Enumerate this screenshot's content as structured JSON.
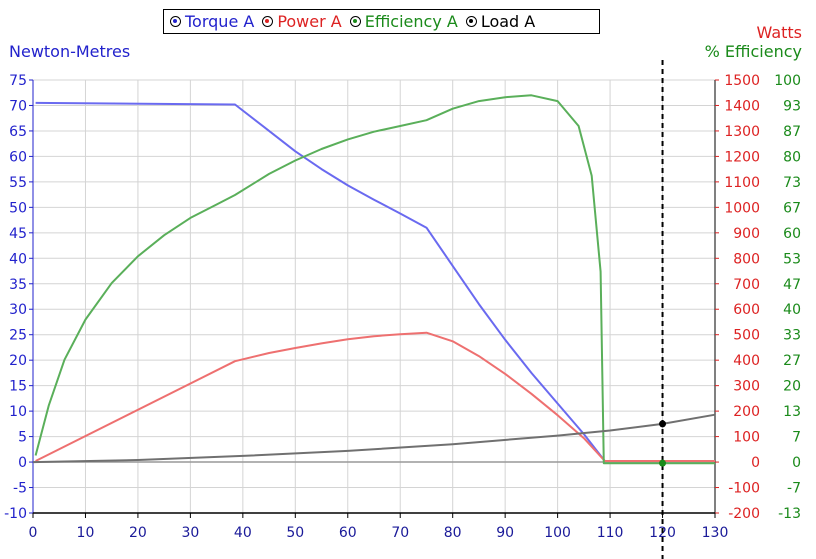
{
  "legend": [
    {
      "label": "Torque A",
      "color": "#2222cc"
    },
    {
      "label": "Power A",
      "color": "#dd2222"
    },
    {
      "label": "Efficiency A",
      "color": "#1a8a1a"
    },
    {
      "label": "Load A",
      "color": "#000000"
    }
  ],
  "axes": {
    "left_title": "Newton-Metres",
    "right_title_1": "Watts",
    "right_title_2": "% Efficiency"
  },
  "chart_data": {
    "type": "line",
    "xlim": [
      0,
      130
    ],
    "x_ticks": [
      0,
      10,
      20,
      30,
      40,
      50,
      60,
      70,
      80,
      90,
      100,
      110,
      120,
      130
    ],
    "left_axis": {
      "title": "Newton-Metres",
      "ylim": [
        -10,
        75
      ],
      "color": "#2222cc",
      "ticks": [
        "-10",
        "-5",
        "0",
        "5",
        "10",
        "15",
        "20",
        "25",
        "30",
        "35",
        "40",
        "45",
        "50",
        "55",
        "60",
        "65",
        "70",
        "75"
      ]
    },
    "watts_axis": {
      "title": "Watts",
      "ylim": [
        -200,
        1500
      ],
      "color": "#dd2222",
      "ticks": [
        "-200",
        "-100",
        "0",
        "100",
        "200",
        "300",
        "400",
        "500",
        "600",
        "700",
        "800",
        "900",
        "1000",
        "1100",
        "1200",
        "1300",
        "1400",
        "1500"
      ]
    },
    "efficiency_axis": {
      "title": "% Efficiency",
      "ylim": [
        -13,
        100
      ],
      "color": "#1a8a1a",
      "ticks": [
        "-13",
        "-7",
        "0",
        "7",
        "13",
        "20",
        "27",
        "33",
        "40",
        "47",
        "53",
        "60",
        "67",
        "73",
        "80",
        "87",
        "93",
        "100"
      ]
    },
    "marker_x": 120,
    "series": [
      {
        "name": "Torque A",
        "color": "#6a6af0",
        "axis": "left",
        "points": [
          [
            0.5,
            70.5
          ],
          [
            38.5,
            70.2
          ],
          [
            45,
            65
          ],
          [
            50,
            61
          ],
          [
            55,
            57.5
          ],
          [
            60,
            54.3
          ],
          [
            65,
            51.5
          ],
          [
            70,
            48.8
          ],
          [
            75,
            46
          ],
          [
            80,
            38.5
          ],
          [
            85,
            31
          ],
          [
            90,
            24
          ],
          [
            95,
            17.5
          ],
          [
            100,
            11.5
          ],
          [
            105,
            5.5
          ],
          [
            109,
            0.2
          ],
          [
            130,
            0.2
          ]
        ]
      },
      {
        "name": "Power A",
        "color": "#ee7070",
        "axis": "watts",
        "points": [
          [
            0.5,
            4
          ],
          [
            38.5,
            396
          ],
          [
            45,
            428
          ],
          [
            50,
            448
          ],
          [
            55,
            466
          ],
          [
            60,
            482
          ],
          [
            65,
            494
          ],
          [
            70,
            502
          ],
          [
            75,
            508
          ],
          [
            80,
            474
          ],
          [
            85,
            416
          ],
          [
            90,
            346
          ],
          [
            95,
            268
          ],
          [
            100,
            184
          ],
          [
            105,
            94
          ],
          [
            109,
            4
          ],
          [
            130,
            4
          ]
        ]
      },
      {
        "name": "Efficiency A",
        "color": "#5aaf5a",
        "axis": "efficiency",
        "points": [
          [
            0.5,
            2
          ],
          [
            3,
            15
          ],
          [
            6,
            27
          ],
          [
            10,
            37.5
          ],
          [
            15,
            47
          ],
          [
            20,
            54
          ],
          [
            25,
            59.5
          ],
          [
            30,
            64
          ],
          [
            35,
            67.5
          ],
          [
            38.5,
            70
          ],
          [
            45,
            75.5
          ],
          [
            50,
            79
          ],
          [
            55,
            82
          ],
          [
            60,
            84.5
          ],
          [
            65,
            86.5
          ],
          [
            70,
            88
          ],
          [
            75,
            89.5
          ],
          [
            80,
            92.5
          ],
          [
            85,
            94.5
          ],
          [
            90,
            95.5
          ],
          [
            95,
            96
          ],
          [
            100,
            94.5
          ],
          [
            104,
            88
          ],
          [
            106.5,
            75
          ],
          [
            108.2,
            50
          ],
          [
            108.8,
            0
          ],
          [
            130,
            0
          ]
        ]
      },
      {
        "name": "Load A",
        "color": "#707070",
        "axis": "left",
        "points": [
          [
            0,
            0
          ],
          [
            20,
            0.4
          ],
          [
            40,
            1.2
          ],
          [
            60,
            2.2
          ],
          [
            80,
            3.5
          ],
          [
            100,
            5.2
          ],
          [
            110,
            6.2
          ],
          [
            120,
            7.5
          ],
          [
            130,
            9.3
          ]
        ]
      }
    ],
    "operating_points": [
      {
        "series": "Load A",
        "x": 120,
        "y": 7.5,
        "axis": "left",
        "color": "#000000"
      },
      {
        "series": "Efficiency A",
        "x": 120,
        "y": 0,
        "axis": "efficiency",
        "color": "#1a8a1a"
      }
    ]
  }
}
